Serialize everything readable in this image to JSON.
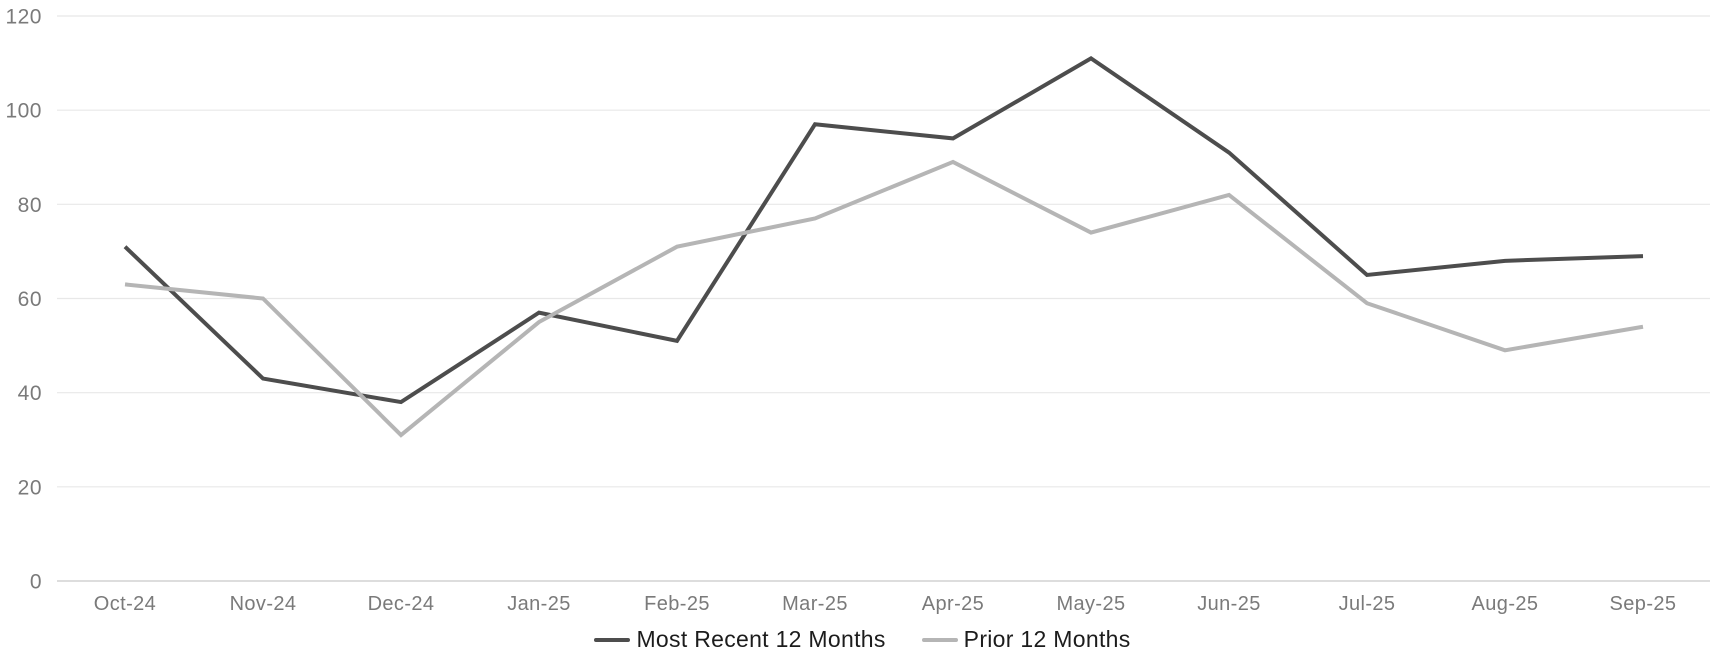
{
  "chart_data": {
    "type": "line",
    "title": "",
    "xlabel": "",
    "ylabel": "",
    "categories": [
      "Oct-24",
      "Nov-24",
      "Dec-24",
      "Jan-25",
      "Feb-25",
      "Mar-25",
      "Apr-25",
      "May-25",
      "Jun-25",
      "Jul-25",
      "Aug-25",
      "Sep-25"
    ],
    "series": [
      {
        "name": "Most Recent 12 Months",
        "color": "#4d4d4d",
        "values": [
          71,
          43,
          38,
          57,
          51,
          97,
          94,
          111,
          91,
          65,
          68,
          69
        ]
      },
      {
        "name": "Prior 12 Months",
        "color": "#b5b5b5",
        "values": [
          63,
          60,
          31,
          55,
          71,
          77,
          89,
          74,
          82,
          59,
          49,
          54
        ]
      }
    ],
    "ylim": [
      0,
      120
    ],
    "yticks": [
      0,
      20,
      40,
      60,
      80,
      100,
      120
    ],
    "grid": "horizontal",
    "legend_position": "bottom"
  },
  "colors": {
    "background": "#ffffff",
    "gridline": "#e8e8e8",
    "axis_line": "#d2d2d2",
    "tick_label": "#7a7a7a",
    "legend_text": "#1c1c1c"
  }
}
